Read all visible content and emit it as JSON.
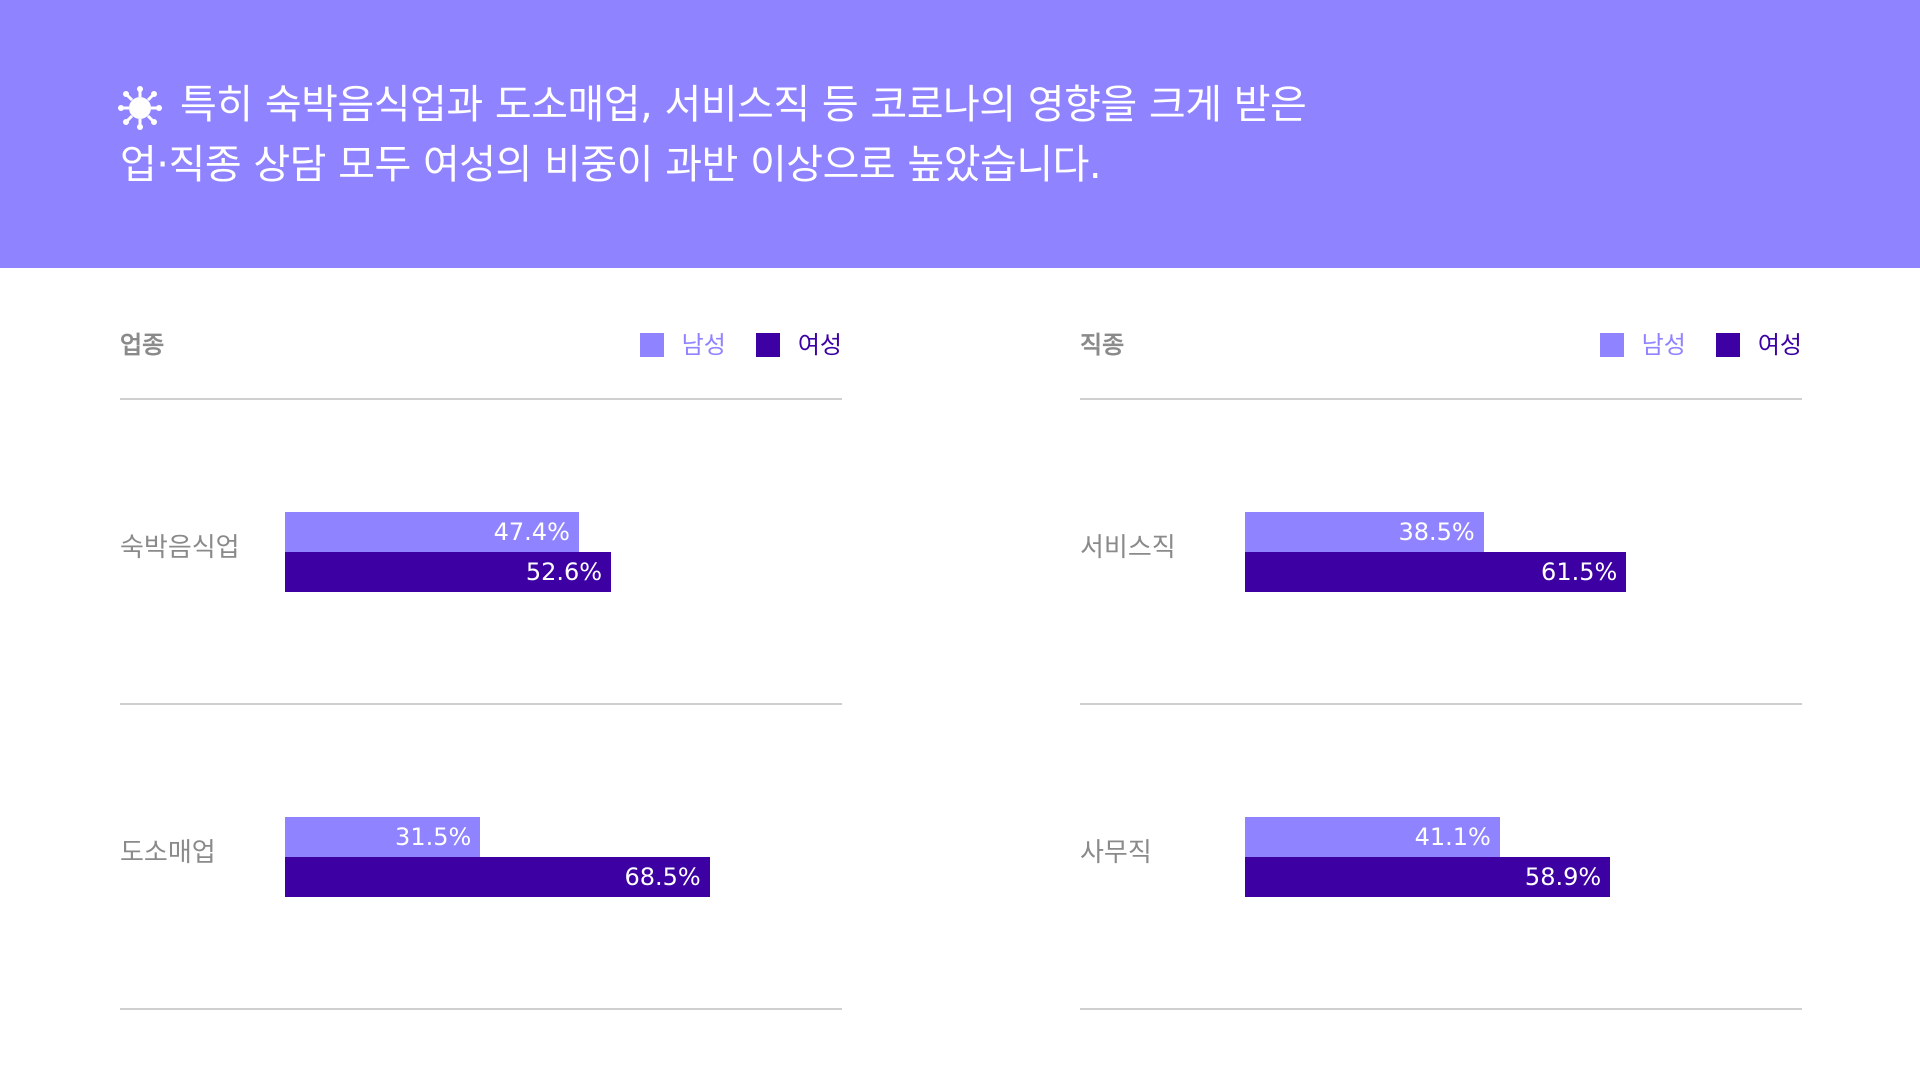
{
  "banner": {
    "icon": "virus-icon",
    "line1": "특히 숙박음식업과 도소매업, 서비스직 등 코로나의 영향을 크게 받은",
    "line2": "업·직종 상담 모두 여성의 비중이 과반 이상으로 높았습니다."
  },
  "colors": {
    "banner": "#8f83ff",
    "male": "#8f83ff",
    "female": "#3d00a3",
    "divider": "#cfcfcf",
    "label": "#8a8a8a"
  },
  "legend": {
    "male": "남성",
    "female": "여성"
  },
  "chart_data": [
    {
      "type": "bar",
      "orientation": "horizontal",
      "title": "업종",
      "categories": [
        "숙박음식업",
        "도소매업"
      ],
      "series": [
        {
          "name": "남성",
          "values": [
            47.4,
            31.5
          ],
          "labels": [
            "47.4%",
            "31.5%"
          ]
        },
        {
          "name": "여성",
          "values": [
            52.6,
            68.5
          ],
          "labels": [
            "52.6%",
            "68.5%"
          ]
        }
      ],
      "unit": "%",
      "legend_position": "top-right",
      "grid": false
    },
    {
      "type": "bar",
      "orientation": "horizontal",
      "title": "직종",
      "categories": [
        "서비스직",
        "사무직"
      ],
      "series": [
        {
          "name": "남성",
          "values": [
            38.5,
            41.1
          ],
          "labels": [
            "38.5%",
            "41.1%"
          ]
        },
        {
          "name": "여성",
          "values": [
            61.5,
            58.9
          ],
          "labels": [
            "61.5%",
            "58.9%"
          ]
        }
      ],
      "unit": "%",
      "legend_position": "top-right",
      "grid": false
    }
  ]
}
